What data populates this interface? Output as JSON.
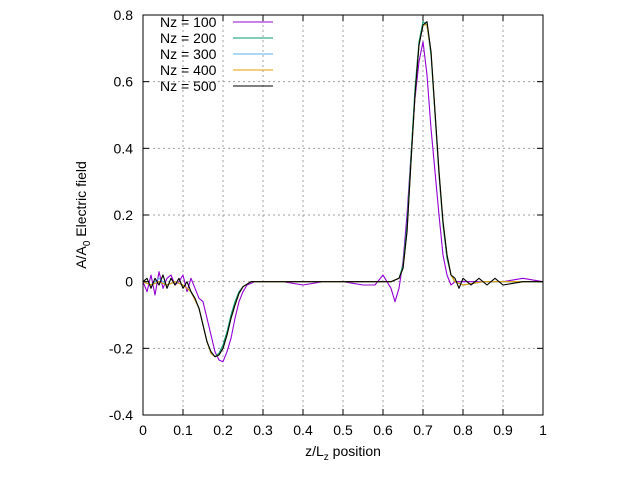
{
  "chart_data": {
    "type": "line",
    "xlabel": "z/L",
    "xlabel_sub": "z",
    "xlabel_suffix": " position",
    "ylabel": "A/A",
    "ylabel_sub": "0",
    "ylabel_suffix": " Electric field",
    "xlim": [
      0,
      1
    ],
    "ylim": [
      -0.4,
      0.8
    ],
    "grid": true,
    "legend_position": "top-left",
    "xticks": [
      0,
      0.1,
      0.2,
      0.3,
      0.4,
      0.5,
      0.6,
      0.7,
      0.8,
      0.9,
      1
    ],
    "xtick_labels": [
      "0",
      "0.1",
      "0.2",
      "0.3",
      "0.4",
      "0.5",
      "0.6",
      "0.7",
      "0.8",
      "0.9",
      "1"
    ],
    "yticks": [
      -0.4,
      -0.2,
      0,
      0.2,
      0.4,
      0.6,
      0.8
    ],
    "ytick_labels": [
      "-0.4",
      "-0.2",
      "0",
      "0.2",
      "0.4",
      "0.6",
      "0.8"
    ],
    "series": [
      {
        "name": "Nz = 100",
        "color": "#9400d3",
        "x": [
          0,
          0.01,
          0.02,
          0.03,
          0.04,
          0.05,
          0.06,
          0.07,
          0.08,
          0.09,
          0.1,
          0.11,
          0.12,
          0.13,
          0.14,
          0.15,
          0.16,
          0.17,
          0.18,
          0.19,
          0.2,
          0.21,
          0.22,
          0.23,
          0.24,
          0.25,
          0.26,
          0.28,
          0.3,
          0.35,
          0.4,
          0.45,
          0.5,
          0.55,
          0.58,
          0.6,
          0.61,
          0.62,
          0.63,
          0.64,
          0.65,
          0.66,
          0.67,
          0.68,
          0.69,
          0.7,
          0.71,
          0.72,
          0.73,
          0.74,
          0.75,
          0.76,
          0.77,
          0.78,
          0.8,
          0.85,
          0.9,
          0.95,
          1
        ],
        "y": [
          0,
          -0.03,
          0.02,
          -0.04,
          0.03,
          -0.02,
          0.01,
          0.02,
          -0.01,
          0,
          0.02,
          -0.03,
          0.01,
          -0.02,
          -0.05,
          -0.06,
          -0.11,
          -0.16,
          -0.21,
          -0.235,
          -0.24,
          -0.21,
          -0.17,
          -0.11,
          -0.06,
          -0.03,
          -0.01,
          0,
          0,
          0,
          -0.01,
          0,
          0,
          -0.01,
          -0.01,
          0.02,
          0,
          -0.02,
          -0.06,
          -0.02,
          0.06,
          0.2,
          0.38,
          0.55,
          0.66,
          0.72,
          0.62,
          0.46,
          0.33,
          0.2,
          0.08,
          0.02,
          -0.01,
          0,
          0,
          0,
          0,
          0.01,
          0
        ]
      },
      {
        "name": "Nz = 200",
        "color": "#009e73",
        "x": [
          0,
          0.02,
          0.04,
          0.06,
          0.08,
          0.1,
          0.12,
          0.14,
          0.15,
          0.16,
          0.17,
          0.18,
          0.19,
          0.2,
          0.21,
          0.22,
          0.23,
          0.24,
          0.25,
          0.27,
          0.3,
          0.4,
          0.5,
          0.6,
          0.62,
          0.64,
          0.65,
          0.66,
          0.67,
          0.68,
          0.69,
          0.7,
          0.71,
          0.72,
          0.73,
          0.74,
          0.75,
          0.76,
          0.77,
          0.78,
          0.8,
          0.85,
          0.9,
          0.95,
          1
        ],
        "y": [
          0,
          -0.01,
          0,
          -0.01,
          0,
          -0.01,
          -0.03,
          -0.08,
          -0.13,
          -0.18,
          -0.215,
          -0.225,
          -0.215,
          -0.19,
          -0.15,
          -0.1,
          -0.06,
          -0.03,
          -0.015,
          0,
          0,
          0,
          0,
          0,
          0,
          0.01,
          0.05,
          0.17,
          0.38,
          0.58,
          0.72,
          0.78,
          0.77,
          0.68,
          0.5,
          0.32,
          0.17,
          0.07,
          0.02,
          0,
          -0.01,
          0,
          0,
          0,
          0
        ]
      },
      {
        "name": "Nz = 300",
        "color": "#56b4e9",
        "x": [
          0,
          0.02,
          0.04,
          0.06,
          0.08,
          0.1,
          0.12,
          0.14,
          0.15,
          0.16,
          0.17,
          0.18,
          0.19,
          0.2,
          0.21,
          0.22,
          0.23,
          0.24,
          0.25,
          0.27,
          0.3,
          0.4,
          0.5,
          0.6,
          0.62,
          0.64,
          0.65,
          0.66,
          0.67,
          0.68,
          0.69,
          0.7,
          0.71,
          0.72,
          0.73,
          0.74,
          0.75,
          0.76,
          0.77,
          0.78,
          0.8,
          0.85,
          0.9,
          0.95,
          1
        ],
        "y": [
          0,
          -0.01,
          0.01,
          -0.01,
          0,
          -0.01,
          -0.03,
          -0.08,
          -0.13,
          -0.18,
          -0.215,
          -0.225,
          -0.22,
          -0.2,
          -0.16,
          -0.11,
          -0.07,
          -0.035,
          -0.015,
          0,
          0,
          0,
          0,
          0,
          0,
          0.01,
          0.04,
          0.15,
          0.36,
          0.56,
          0.71,
          0.77,
          0.77,
          0.69,
          0.51,
          0.33,
          0.18,
          0.08,
          0.02,
          0,
          -0.01,
          0,
          0,
          0,
          0
        ]
      },
      {
        "name": "Nz = 400",
        "color": "#e69f00",
        "x": [
          0,
          0.02,
          0.04,
          0.06,
          0.08,
          0.1,
          0.12,
          0.14,
          0.15,
          0.16,
          0.17,
          0.18,
          0.19,
          0.2,
          0.21,
          0.22,
          0.23,
          0.24,
          0.25,
          0.27,
          0.3,
          0.4,
          0.5,
          0.6,
          0.62,
          0.64,
          0.65,
          0.66,
          0.67,
          0.68,
          0.69,
          0.7,
          0.71,
          0.72,
          0.73,
          0.74,
          0.75,
          0.76,
          0.77,
          0.78,
          0.8,
          0.85,
          0.9,
          0.95,
          1
        ],
        "y": [
          0,
          -0.01,
          0,
          -0.01,
          0,
          -0.01,
          -0.03,
          -0.08,
          -0.13,
          -0.18,
          -0.215,
          -0.225,
          -0.22,
          -0.2,
          -0.16,
          -0.11,
          -0.07,
          -0.035,
          -0.015,
          0,
          0,
          0,
          0,
          0,
          0,
          0.01,
          0.04,
          0.15,
          0.36,
          0.56,
          0.71,
          0.77,
          0.77,
          0.69,
          0.51,
          0.33,
          0.18,
          0.08,
          0.02,
          0,
          -0.01,
          0,
          0,
          0,
          0
        ]
      },
      {
        "name": "Nz = 500",
        "color": "#000000",
        "x": [
          0,
          0.01,
          0.02,
          0.03,
          0.04,
          0.05,
          0.06,
          0.07,
          0.08,
          0.09,
          0.1,
          0.11,
          0.12,
          0.13,
          0.14,
          0.15,
          0.16,
          0.17,
          0.18,
          0.19,
          0.2,
          0.21,
          0.22,
          0.23,
          0.24,
          0.25,
          0.27,
          0.3,
          0.4,
          0.5,
          0.6,
          0.62,
          0.64,
          0.65,
          0.66,
          0.67,
          0.68,
          0.69,
          0.7,
          0.71,
          0.72,
          0.73,
          0.74,
          0.75,
          0.76,
          0.77,
          0.78,
          0.79,
          0.8,
          0.82,
          0.84,
          0.86,
          0.88,
          0.9,
          0.95,
          1
        ],
        "y": [
          0,
          0.01,
          -0.02,
          0.01,
          -0.01,
          0.02,
          -0.02,
          0.01,
          -0.01,
          0.01,
          -0.02,
          0,
          -0.03,
          -0.05,
          -0.08,
          -0.13,
          -0.18,
          -0.21,
          -0.225,
          -0.22,
          -0.2,
          -0.16,
          -0.11,
          -0.07,
          -0.035,
          -0.015,
          0,
          0,
          0,
          0,
          0,
          0,
          0.01,
          0.04,
          0.15,
          0.36,
          0.56,
          0.71,
          0.77,
          0.78,
          0.69,
          0.51,
          0.33,
          0.18,
          0.08,
          0.02,
          0.01,
          -0.02,
          0.01,
          -0.01,
          0.01,
          -0.01,
          0.01,
          -0.01,
          0,
          0
        ]
      }
    ]
  }
}
